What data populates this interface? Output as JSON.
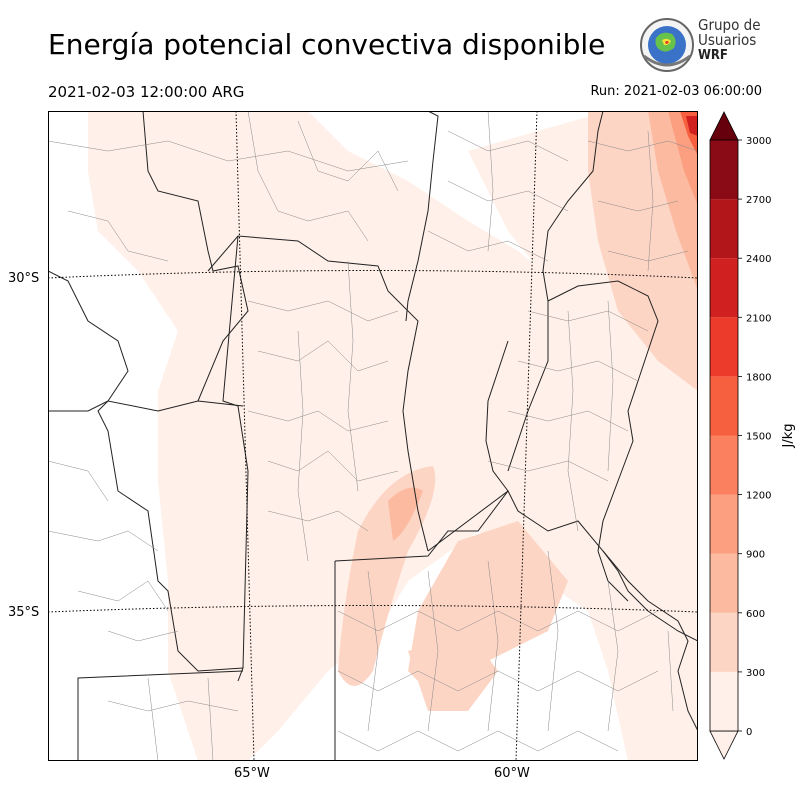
{
  "header": {
    "title": "Energía potencial convectiva disponible",
    "valid_time": "2021-02-03 12:00:00 ARG",
    "run_time": "Run: 2021-02-03 06:00:00"
  },
  "logo": {
    "line1": "Grupo de",
    "line2": "Usuarios",
    "line3": "WRF"
  },
  "map": {
    "variable": "CAPE",
    "lat_labels": [
      "30°S",
      "35°S"
    ],
    "lon_labels": [
      "65°W",
      "60°W"
    ]
  },
  "colorbar": {
    "label": "J/kg",
    "ticks": [
      "0",
      "300",
      "600",
      "900",
      "1200",
      "1500",
      "1800",
      "2100",
      "2400",
      "2700",
      "3000"
    ],
    "colors": [
      "#fff0e9",
      "#fdd5c4",
      "#fcbba1",
      "#fc9e80",
      "#fb8060",
      "#f6603f",
      "#ec3b2b",
      "#d0201f",
      "#b2161b",
      "#8a0a15",
      "#67000d"
    ],
    "extend": "both"
  }
}
